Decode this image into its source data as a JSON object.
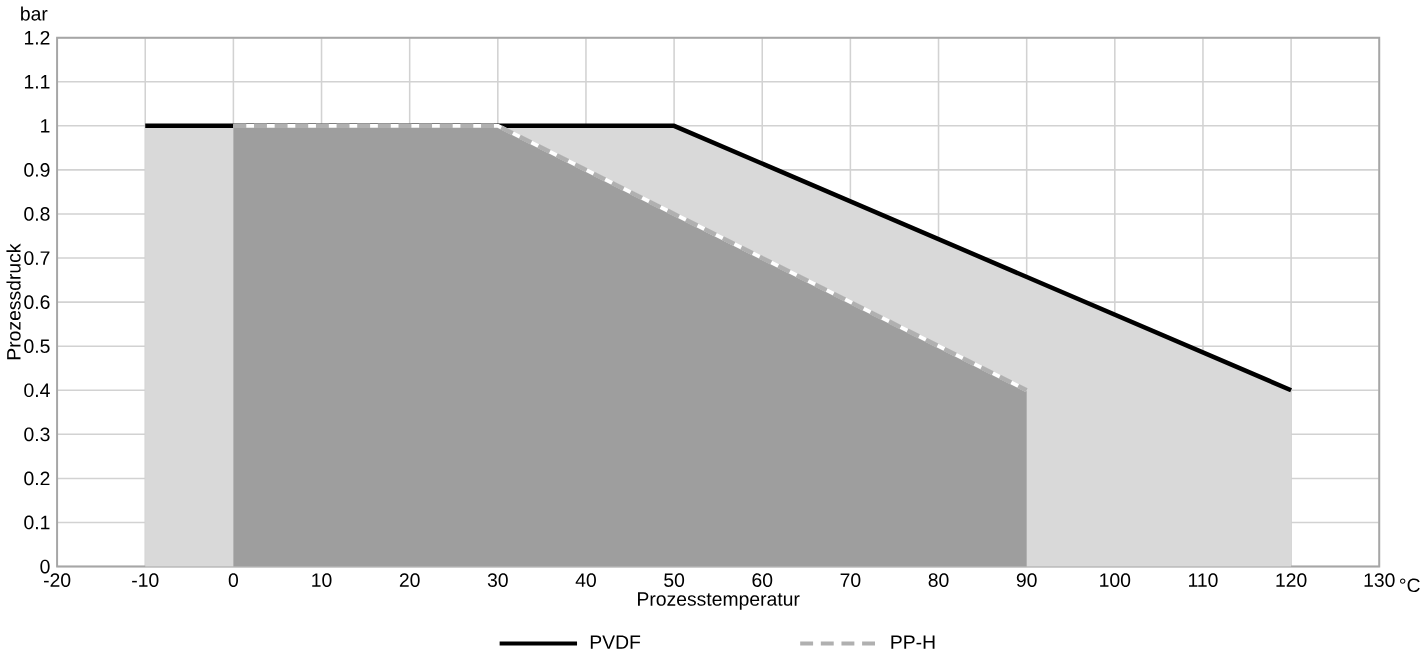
{
  "chart_data": {
    "type": "area",
    "xlabel": "Prozesstemperatur",
    "ylabel": "Prozessdruck",
    "annotations": [
      "bar",
      "°C"
    ],
    "xlim": [
      -20,
      130
    ],
    "xticks": [
      -20,
      -10,
      0,
      10,
      20,
      30,
      40,
      50,
      60,
      70,
      80,
      90,
      100,
      110,
      120,
      130
    ],
    "ylim": [
      0,
      1.2
    ],
    "yticks": [
      0,
      0.1,
      0.2,
      0.3,
      0.4,
      0.5,
      0.6,
      0.7,
      0.8,
      0.9,
      1,
      1.1,
      1.2
    ],
    "grid": true,
    "legend": "bottom",
    "series": [
      {
        "name": "PVDF",
        "color": "#000000",
        "line_style": "solid",
        "x": [
          -10,
          50,
          120
        ],
        "values": [
          1,
          1,
          0.4
        ]
      },
      {
        "name": "PP-H",
        "color": "#b0b0b0",
        "line_style": "dashed",
        "x": [
          0,
          30,
          90
        ],
        "values": [
          1,
          1,
          0.4
        ]
      }
    ]
  }
}
